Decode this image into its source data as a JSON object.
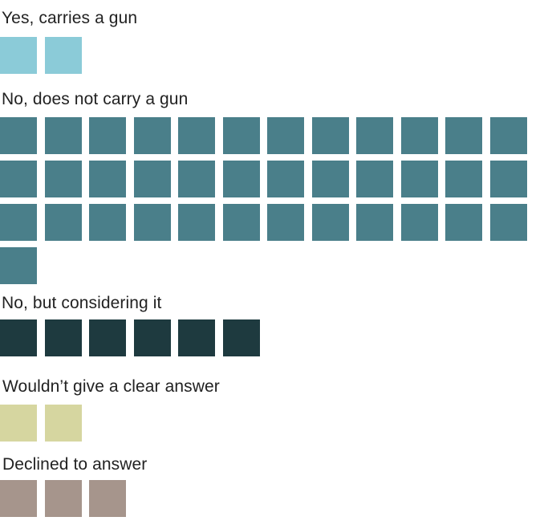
{
  "chart_data": {
    "type": "waffle",
    "unit": "respondent",
    "groups": [
      {
        "label": "Yes, carries a gun",
        "count": 2,
        "color": "#8bcbd8"
      },
      {
        "label": "No, does not carry a gun",
        "count": 37,
        "color": "#4a7f8a"
      },
      {
        "label": "No, but considering it",
        "count": 6,
        "color": "#1e3a3f"
      },
      {
        "label": "Wouldn’t give a clear answer",
        "count": 2,
        "color": "#d6d6a0"
      },
      {
        "label": "Declined to answer",
        "count": 3,
        "color": "#a6958c"
      }
    ]
  }
}
